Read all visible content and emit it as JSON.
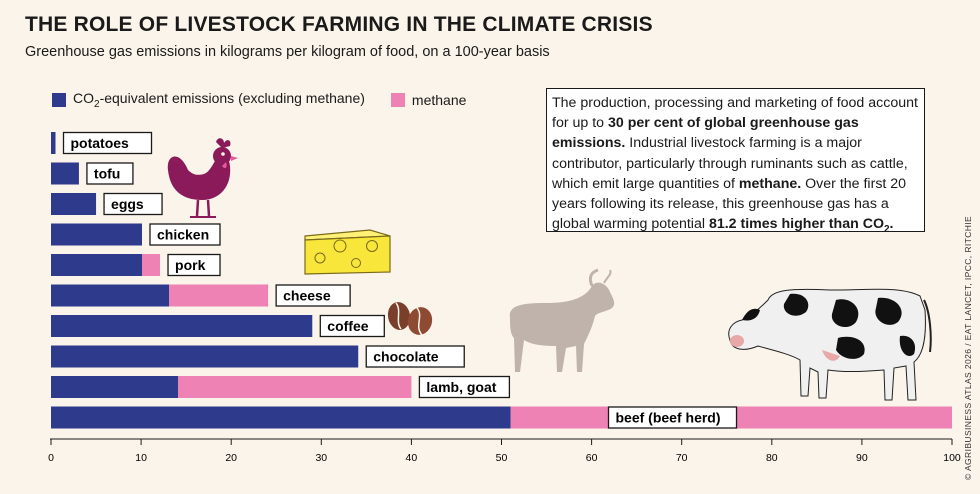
{
  "header": {
    "title": "THE ROLE OF LIVESTOCK FARMING IN THE CLIMATE CRISIS",
    "subtitle": "Greenhouse gas emissions in kilograms per kilogram of food, on a 100-year basis"
  },
  "legend": {
    "co2_label_pre": "CO",
    "co2_label_sub": "2",
    "co2_label_post": "-equivalent emissions (excluding methane)",
    "methane_label": "methane"
  },
  "infobox": {
    "t1": "The production, processing and marketing of food account for up to ",
    "b1": "30 per cent of global greenhouse gas emissions.",
    "t2": " Industrial livestock farming is a major contributor, particularly through ruminants such as cattle, which emit large quantities of ",
    "b2": "methane.",
    "t3": " Over the first 20 years following its release, this greenhouse gas has a global warming potential ",
    "b3pre": "81.2 times higher than CO",
    "b3sub": "2",
    "b3post": "."
  },
  "credit": "© AGRIBUSINESS ATLAS 2026 / EAT LANCET, IPCC, RITCHIE",
  "colors": {
    "co2": "#2e3a8c",
    "methane": "#ee82b4",
    "background": "#fbf4ea"
  },
  "illustrations": [
    "chicken-icon",
    "cheese-icon",
    "coffee-beans-icon",
    "goat-icon",
    "cow-icon"
  ],
  "chart_data": {
    "type": "bar",
    "orientation": "horizontal",
    "stacked": true,
    "categories": [
      "potatoes",
      "tofu",
      "eggs",
      "chicken",
      "pork",
      "cheese",
      "coffee",
      "chocolate",
      "lamb, goat",
      "beef (beef herd)"
    ],
    "series": [
      {
        "name": "CO2-equivalent emissions (excluding methane)",
        "values": [
          0.5,
          3.1,
          5.0,
          10.1,
          10.1,
          13.1,
          29.0,
          34.1,
          14.1,
          51.0
        ]
      },
      {
        "name": "methane",
        "values": [
          0,
          0,
          0,
          0,
          2.0,
          11.0,
          0,
          0,
          25.9,
          49.0
        ]
      }
    ],
    "xlim": [
      0,
      100
    ],
    "xticks": [
      0,
      10,
      20,
      30,
      40,
      50,
      60,
      70,
      80,
      90,
      100
    ],
    "grid": false,
    "legend_position": "top-left"
  }
}
